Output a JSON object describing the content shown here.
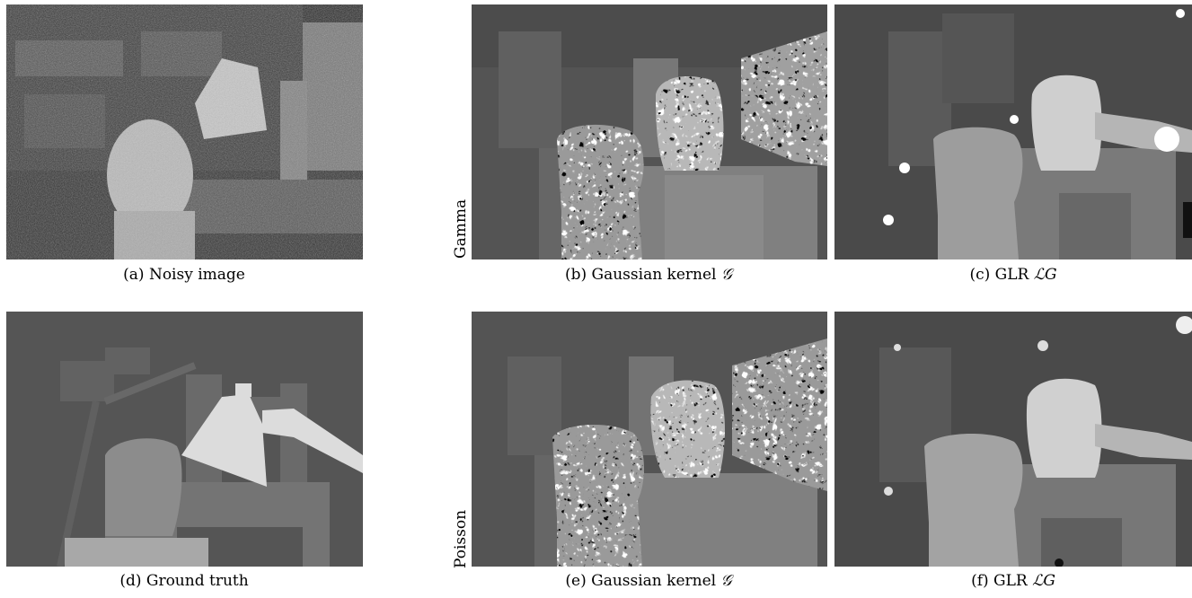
{
  "figure": {
    "row_labels": [
      "Gamma",
      "Poisson"
    ],
    "panels": [
      {
        "id": "a",
        "caption": "(a) Noisy image",
        "math": ""
      },
      {
        "id": "b",
        "caption": "(b) Gaussian kernel ",
        "math": "𝒢"
      },
      {
        "id": "c",
        "caption": "(c) GLR ",
        "math": "ℒG"
      },
      {
        "id": "d",
        "caption": "(d) Ground truth",
        "math": ""
      },
      {
        "id": "e",
        "caption": "(e) Gaussian kernel ",
        "math": "𝒢"
      },
      {
        "id": "f",
        "caption": "(f) GLR ",
        "math": "ℒG"
      }
    ]
  }
}
